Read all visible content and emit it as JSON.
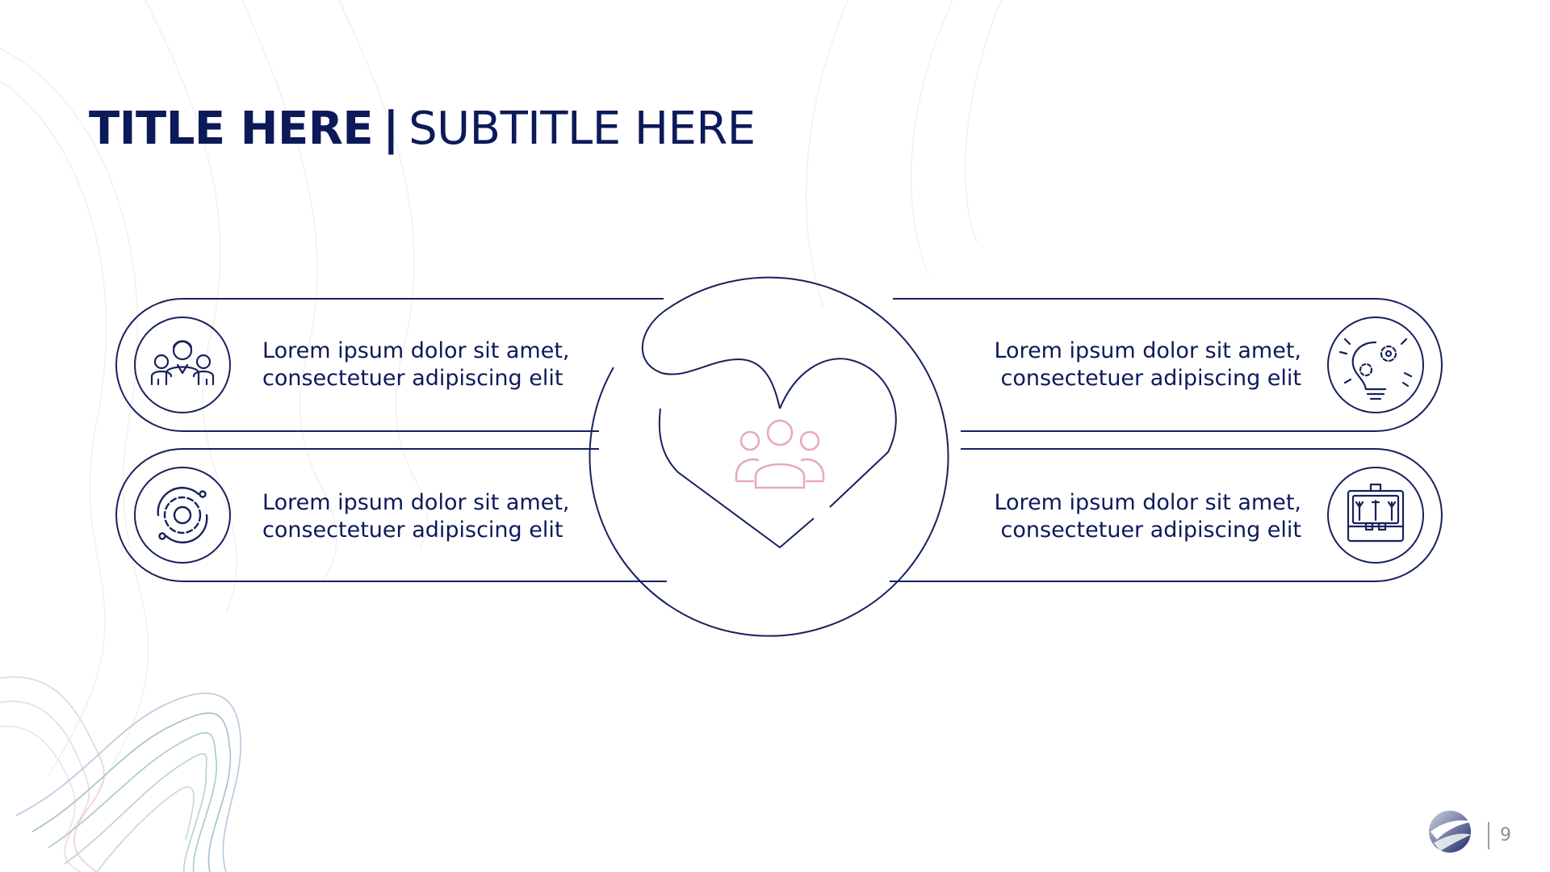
{
  "slide": {
    "title": "TITLE HERE",
    "separator": "|",
    "subtitle": "SUBTITLE HERE",
    "page_number": "9"
  },
  "colors": {
    "navy": "#0c1a5a",
    "pink": "#e7a9c2",
    "line": "#17225c",
    "contour_teal": "#7fb3b3",
    "contour_pink": "#e8c2d0"
  },
  "items": [
    {
      "id": "top-left",
      "icon": "team-people-icon",
      "line1": "Lorem ipsum dolor sit amet,",
      "line2": "consectetuer adipiscing elit"
    },
    {
      "id": "bottom-left",
      "icon": "gear-cycle-icon",
      "line1": "Lorem ipsum dolor sit amet,",
      "line2": "consectetuer adipiscing elit"
    },
    {
      "id": "top-right",
      "icon": "lightbulb-gears-icon",
      "line1": "Lorem ipsum dolor sit amet,",
      "line2": "consectetuer adipiscing elit"
    },
    {
      "id": "bottom-right",
      "icon": "toolbox-icon",
      "line1": "Lorem ipsum dolor sit amet,",
      "line2": "consectetuer adipiscing elit"
    }
  ],
  "center": {
    "icon": "heart-group-icon"
  },
  "logo": {
    "icon": "company-logo-icon"
  }
}
